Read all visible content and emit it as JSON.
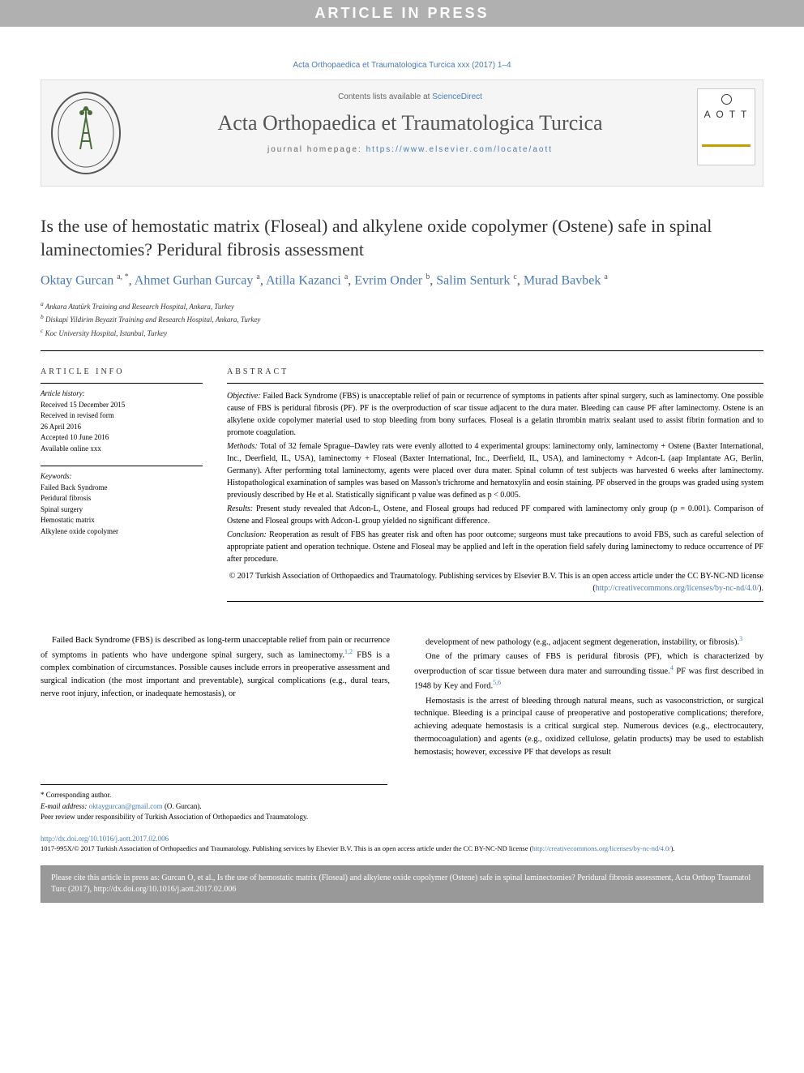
{
  "banner": "ARTICLE IN PRESS",
  "citation": "Acta Orthopaedica et Traumatologica Turcica xxx (2017) 1–4",
  "header": {
    "contents_prefix": "Contents lists available at ",
    "contents_link": "ScienceDirect",
    "journal_name": "Acta Orthopaedica et Traumatologica Turcica",
    "homepage_prefix": "journal homepage: ",
    "homepage_url": "https://www.elsevier.com/locate/aott",
    "logo_right_text": "A O T T"
  },
  "title": "Is the use of hemostatic matrix (Floseal) and alkylene oxide copolymer (Ostene) safe in spinal laminectomies? Peridural fibrosis assessment",
  "authors": [
    {
      "name": "Oktay Gurcan",
      "sup": "a, *"
    },
    {
      "name": "Ahmet Gurhan Gurcay",
      "sup": "a"
    },
    {
      "name": "Atilla Kazanci",
      "sup": "a"
    },
    {
      "name": "Evrim Onder",
      "sup": "b"
    },
    {
      "name": "Salim Senturk",
      "sup": "c"
    },
    {
      "name": "Murad Bavbek",
      "sup": "a"
    }
  ],
  "affiliations": [
    {
      "sup": "a",
      "text": "Ankara Atatürk Training and Research Hospital, Ankara, Turkey"
    },
    {
      "sup": "b",
      "text": "Diskapi Yildirim Beyazit Training and Research Hospital, Ankara, Turkey"
    },
    {
      "sup": "c",
      "text": "Koc University Hospital, Istanbul, Turkey"
    }
  ],
  "article_info": {
    "heading": "ARTICLE INFO",
    "history_label": "Article history:",
    "history": [
      "Received 15 December 2015",
      "Received in revised form",
      "26 April 2016",
      "Accepted 10 June 2016",
      "Available online xxx"
    ],
    "keywords_label": "Keywords:",
    "keywords": [
      "Failed Back Syndrome",
      "Peridural fibrosis",
      "Spinal surgery",
      "Hemostatic matrix",
      "Alkylene oxide copolymer"
    ]
  },
  "abstract": {
    "heading": "ABSTRACT",
    "sections": [
      {
        "label": "Objective:",
        "text": "Failed Back Syndrome (FBS) is unacceptable relief of pain or recurrence of symptoms in patients after spinal surgery, such as laminectomy. One possible cause of FBS is peridural fibrosis (PF). PF is the overproduction of scar tissue adjacent to the dura mater. Bleeding can cause PF after laminectomy. Ostene is an alkylene oxide copolymer material used to stop bleeding from bony surfaces. Floseal is a gelatin thrombin matrix sealant used to assist fibrin formation and to promote coagulation."
      },
      {
        "label": "Methods:",
        "text": "Total of 32 female Sprague–Dawley rats were evenly allotted to 4 experimental groups: laminectomy only, laminectomy + Ostene (Baxter International, Inc., Deerfield, IL, USA), laminectomy + Floseal (Baxter International, Inc., Deerfield, IL, USA), and laminectomy + Adcon-L (aap Implantate AG, Berlin, Germany). After performing total laminectomy, agents were placed over dura mater. Spinal column of test subjects was harvested 6 weeks after laminectomy. Histopathological examination of samples was based on Masson's trichrome and hematoxylin and eosin staining. PF observed in the groups was graded using system previously described by He et al. Statistically significant p value was defined as p < 0.005."
      },
      {
        "label": "Results:",
        "text": "Present study revealed that Adcon-L, Ostene, and Floseal groups had reduced PF compared with laminectomy only group (p = 0.001). Comparison of Ostene and Floseal groups with Adcon-L group yielded no significant difference."
      },
      {
        "label": "Conclusion:",
        "text": "Reoperation as result of FBS has greater risk and often has poor outcome; surgeons must take precautions to avoid FBS, such as careful selection of appropriate patient and operation technique. Ostene and Floseal may be applied and left in the operation field safely during laminectomy to reduce occurrence of PF after procedure."
      }
    ],
    "copyright": "© 2017 Turkish Association of Orthopaedics and Traumatology. Publishing services by Elsevier B.V. This is an open access article under the CC BY-NC-ND license (",
    "license_url": "http://creativecommons.org/licenses/by-nc-nd/4.0/",
    "copyright_suffix": ")."
  },
  "body": {
    "col1": [
      "Failed Back Syndrome (FBS) is described as long-term unacceptable relief from pain or recurrence of symptoms in patients who have undergone spinal surgery, such as laminectomy.<sup>1,2</sup> FBS is a complex combination of circumstances. Possible causes include errors in preoperative assessment and surgical indication (the most important and preventable), surgical complications (e.g., dural tears, nerve root injury, infection, or inadequate hemostasis), or"
    ],
    "col2": [
      "development of new pathology (e.g., adjacent segment degeneration, instability, or fibrosis).<sup>3</sup>",
      "One of the primary causes of FBS is peridural fibrosis (PF), which is characterized by overproduction of scar tissue between dura mater and surrounding tissue.<sup>4</sup> PF was first described in 1948 by Key and Ford.<sup>5,6</sup>",
      "Hemostasis is the arrest of bleeding through natural means, such as vasoconstriction, or surgical technique. Bleeding is a principal cause of preoperative and postoperative complications; therefore, achieving adequate hemostasis is a critical surgical step. Numerous devices (e.g., electrocautery, thermocoagulation) and agents (e.g., oxidized cellulose, gelatin products) may be used to establish hemostasis; however, excessive PF that develops as result"
    ]
  },
  "footnotes": {
    "corresponding": "* Corresponding author.",
    "email_label": "E-mail address: ",
    "email": "oktaygurcan@gmail.com",
    "email_suffix": " (O. Gurcan).",
    "peer": "Peer review under responsibility of Turkish Association of Orthopaedics and Traumatology."
  },
  "doi": {
    "url": "http://dx.doi.org/10.1016/j.aott.2017.02.006",
    "issn_line": "1017-995X/© 2017 Turkish Association of Orthopaedics and Traumatology. Publishing services by Elsevier B.V. This is an open access article under the CC BY-NC-ND license (",
    "license_url": "http://creativecommons.org/licenses/by-nc-nd/4.0/",
    "suffix": ")."
  },
  "cite_box": "Please cite this article in press as: Gurcan O, et al., Is the use of hemostatic matrix (Floseal) and alkylene oxide copolymer (Ostene) safe in spinal laminectomies? Peridural fibrosis assessment, Acta Orthop Traumatol Turc (2017), http://dx.doi.org/10.1016/j.aott.2017.02.006",
  "colors": {
    "link": "#4a7bb5",
    "banner_bg": "#b0b0b0",
    "header_bg": "#f5f5f5",
    "citebox_bg": "#999999"
  }
}
